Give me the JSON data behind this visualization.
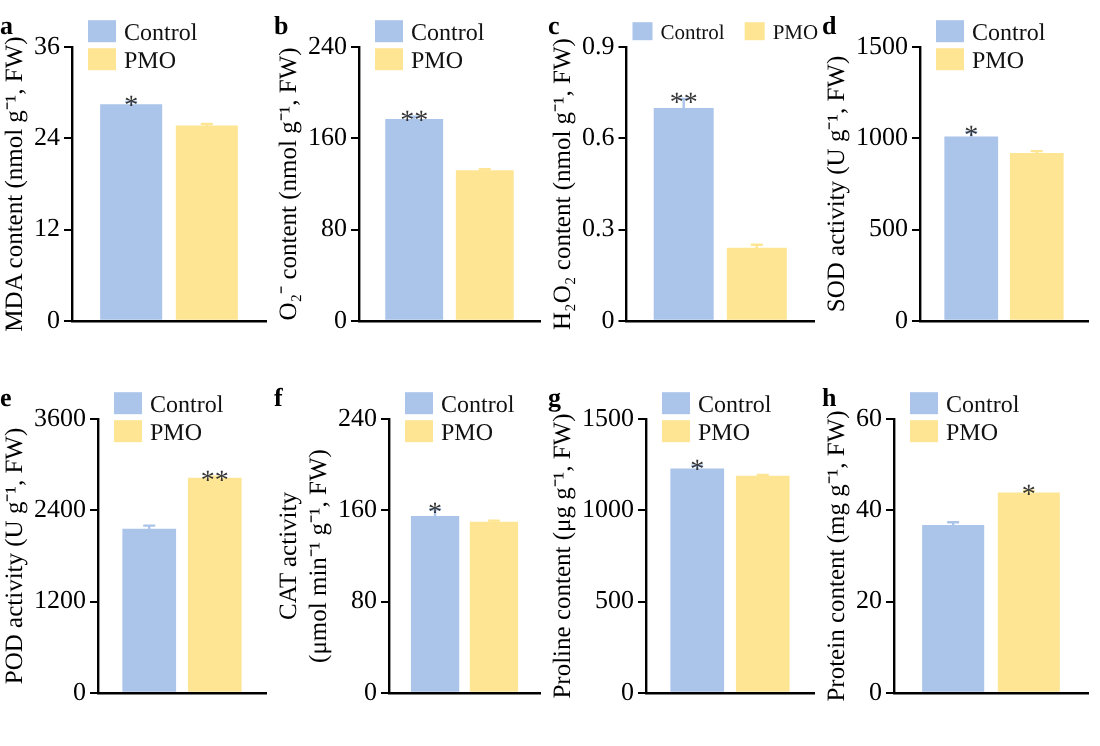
{
  "chart_data": [
    {
      "type": "bar",
      "title": "a",
      "ylabel": "MDA content (nmol g⁻¹, FW)",
      "categories": [
        null
      ],
      "ylim": [
        0,
        36
      ],
      "yticks": [
        0,
        12,
        24,
        36
      ],
      "grid": false,
      "legend": "top left",
      "series": [
        {
          "name": "Control",
          "color": "#aac4ea",
          "values": [
            28.5
          ],
          "errors": [
            0.3
          ],
          "value_labels": [
            "*"
          ]
        },
        {
          "name": "PMO",
          "color": "#fde594",
          "values": [
            25.7
          ],
          "errors": [
            0.2
          ],
          "value_labels": [
            null
          ]
        }
      ]
    },
    {
      "type": "bar",
      "title": "b",
      "ylabel": "O₂⁻ content (nmol g⁻¹, FW)",
      "categories": [
        null
      ],
      "ylim": [
        0,
        240
      ],
      "yticks": [
        0,
        80,
        160,
        240
      ],
      "grid": false,
      "legend": "top left",
      "series": [
        {
          "name": "Control",
          "color": "#aac4ea",
          "values": [
            177
          ],
          "errors": [
            2
          ],
          "value_labels": [
            "**"
          ]
        },
        {
          "name": "PMO",
          "color": "#fde594",
          "values": [
            132
          ],
          "errors": [
            1
          ],
          "value_labels": [
            null
          ]
        }
      ]
    },
    {
      "type": "bar",
      "title": "c",
      "ylabel": "H₂O₂ content (nmol g⁻¹, FW)",
      "categories": [
        null
      ],
      "ylim": [
        0,
        0.9
      ],
      "yticks": [
        0,
        0.3,
        0.6,
        0.9
      ],
      "grid": false,
      "legend": "top",
      "series": [
        {
          "name": "Control",
          "color": "#aac4ea",
          "values": [
            0.7
          ],
          "errors": [
            0.03
          ],
          "value_labels": [
            "**"
          ]
        },
        {
          "name": "PMO",
          "color": "#fde594",
          "values": [
            0.24
          ],
          "errors": [
            0.01
          ],
          "value_labels": [
            null
          ]
        }
      ]
    },
    {
      "type": "bar",
      "title": "d",
      "ylabel": "SOD activity (U g⁻¹, FW)",
      "categories": [
        null
      ],
      "ylim": [
        0,
        1500
      ],
      "yticks": [
        0,
        500,
        1000,
        1500
      ],
      "grid": false,
      "legend": "top left",
      "series": [
        {
          "name": "Control",
          "color": "#aac4ea",
          "values": [
            1010
          ],
          "errors": [
            25
          ],
          "value_labels": [
            "*"
          ]
        },
        {
          "name": "PMO",
          "color": "#fde594",
          "values": [
            920
          ],
          "errors": [
            10
          ],
          "value_labels": [
            null
          ]
        }
      ]
    },
    {
      "type": "bar",
      "title": "e",
      "ylabel": "POD activity (U g⁻¹, FW)",
      "categories": [
        null
      ],
      "ylim": [
        0,
        3600
      ],
      "yticks": [
        0,
        1200,
        2400,
        3600
      ],
      "grid": false,
      "legend": "top left",
      "series": [
        {
          "name": "Control",
          "color": "#aac4ea",
          "values": [
            2160
          ],
          "errors": [
            40
          ],
          "value_labels": [
            null
          ]
        },
        {
          "name": "PMO",
          "color": "#fde594",
          "values": [
            2830
          ],
          "errors": [
            15
          ],
          "value_labels": [
            "**"
          ]
        }
      ]
    },
    {
      "type": "bar",
      "title": "f",
      "ylabel": "CAT activity\n(μmol min⁻¹ g⁻¹, FW)",
      "categories": [
        null
      ],
      "ylim": [
        0,
        240
      ],
      "yticks": [
        0,
        80,
        160,
        240
      ],
      "grid": false,
      "legend": "top left",
      "series": [
        {
          "name": "Control",
          "color": "#aac4ea",
          "values": [
            155
          ],
          "errors": [
            6
          ],
          "value_labels": [
            "*"
          ]
        },
        {
          "name": "PMO",
          "color": "#fde594",
          "values": [
            150
          ],
          "errors": [
            1
          ],
          "value_labels": [
            null
          ]
        }
      ]
    },
    {
      "type": "bar",
      "title": "g",
      "ylabel": "Proline content (μg g⁻¹, FW)",
      "categories": [
        null
      ],
      "ylim": [
        0,
        1500
      ],
      "yticks": [
        0,
        500,
        1000,
        1500
      ],
      "grid": false,
      "legend": "top left",
      "series": [
        {
          "name": "Control",
          "color": "#aac4ea",
          "values": [
            1230
          ],
          "errors": [
            15
          ],
          "value_labels": [
            "*"
          ]
        },
        {
          "name": "PMO",
          "color": "#fde594",
          "values": [
            1190
          ],
          "errors": [
            5
          ],
          "value_labels": [
            null
          ]
        }
      ]
    },
    {
      "type": "bar",
      "title": "h",
      "ylabel": "Protein content (mg g⁻¹, FW)",
      "categories": [
        null
      ],
      "ylim": [
        0,
        60
      ],
      "yticks": [
        0,
        20,
        40,
        60
      ],
      "grid": false,
      "legend": "top left",
      "series": [
        {
          "name": "Control",
          "color": "#aac4ea",
          "values": [
            36.8
          ],
          "errors": [
            0.6
          ],
          "value_labels": [
            null
          ]
        },
        {
          "name": "PMO",
          "color": "#fde594",
          "values": [
            43.9
          ],
          "errors": [
            0.4
          ],
          "value_labels": [
            "*"
          ]
        }
      ]
    }
  ]
}
